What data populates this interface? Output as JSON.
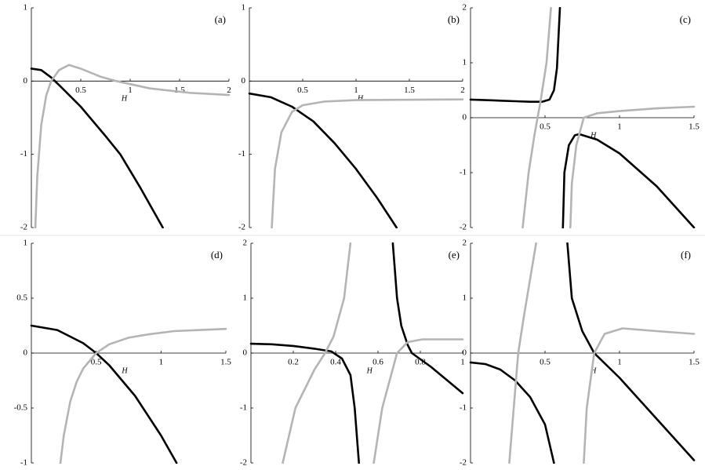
{
  "chart_data": [
    {
      "type": "line",
      "panel_label": "(a)",
      "xlabel": "H",
      "xlim": [
        0,
        2
      ],
      "ylim": [
        -2,
        1
      ],
      "xticks": [
        0.5,
        1,
        1.5,
        2
      ],
      "yticks": [
        -2,
        -1,
        0,
        1
      ],
      "series": [
        {
          "color": "#000000",
          "x": [
            0,
            0.1,
            0.2,
            0.3,
            0.5,
            0.75,
            0.9,
            1.1,
            1.33
          ],
          "values": [
            0.17,
            0.15,
            0.05,
            -0.08,
            -0.35,
            -0.75,
            -1.0,
            -1.45,
            -2
          ]
        },
        {
          "color": "#b4b4b4",
          "x": [
            0.04,
            0.06,
            0.1,
            0.15,
            0.2,
            0.28,
            0.38,
            0.5,
            0.7,
            0.86,
            1.2,
            1.6,
            2
          ],
          "values": [
            -2,
            -1.3,
            -0.6,
            -0.2,
            0,
            0.15,
            0.22,
            0.17,
            0.06,
            0,
            -0.1,
            -0.16,
            -0.19
          ]
        }
      ]
    },
    {
      "type": "line",
      "panel_label": "(b)",
      "xlabel": "H",
      "xlim": [
        0,
        2
      ],
      "ylim": [
        -2,
        1
      ],
      "xticks": [
        0.5,
        1,
        1.5,
        2
      ],
      "yticks": [
        -2,
        -1,
        0,
        1
      ],
      "series": [
        {
          "color": "#000000",
          "x": [
            0,
            0.2,
            0.4,
            0.6,
            0.8,
            1,
            1.2,
            1.38
          ],
          "values": [
            -0.17,
            -0.22,
            -0.35,
            -0.55,
            -0.85,
            -1.2,
            -1.6,
            -2
          ]
        },
        {
          "color": "#b4b4b4",
          "x": [
            0.21,
            0.24,
            0.3,
            0.4,
            0.5,
            0.7,
            1,
            2
          ],
          "values": [
            -2,
            -1.2,
            -0.7,
            -0.42,
            -0.33,
            -0.28,
            -0.26,
            -0.25
          ]
        }
      ]
    },
    {
      "type": "line",
      "panel_label": "(c)",
      "xlabel": "H",
      "xlim": [
        0,
        1.5
      ],
      "ylim": [
        -2,
        2
      ],
      "xticks": [
        0.5,
        1,
        1.5
      ],
      "yticks": [
        -2,
        -1,
        0,
        1,
        2
      ],
      "series": [
        {
          "color": "#000000",
          "x": [
            0,
            0.1,
            0.2,
            0.3,
            0.4,
            0.48,
            0.53,
            0.56,
            0.58,
            0.6,
            0.61,
            0.62,
            0.63,
            0.66,
            0.7,
            0.73,
            0.85,
            1,
            1.25,
            1.5
          ],
          "values": [
            0.33,
            0.32,
            0.31,
            0.3,
            0.29,
            0.29,
            0.33,
            0.5,
            0.9,
            2,
            null,
            -2,
            -1,
            -0.5,
            -0.32,
            -0.3,
            -0.4,
            -0.65,
            -1.25,
            -2
          ]
        },
        {
          "color": "#b4b4b4",
          "x": [
            0.35,
            0.39,
            0.43,
            0.45,
            0.47,
            0.51,
            0.54,
            0.6,
            0.67,
            0.68,
            0.71,
            0.76,
            0.85,
            1,
            1.25,
            1.5
          ],
          "values": [
            -2,
            -1,
            -0.3,
            0,
            0.3,
            1,
            2,
            null,
            -2,
            -1.2,
            -0.5,
            0,
            0.08,
            0.12,
            0.17,
            0.2
          ]
        }
      ]
    },
    {
      "type": "line",
      "panel_label": "(d)",
      "xlabel": "H",
      "xlim": [
        0,
        1.5
      ],
      "ylim": [
        -1,
        1
      ],
      "xticks": [
        0.5,
        1,
        1.5
      ],
      "yticks": [
        -1,
        -0.5,
        0,
        0.5,
        1
      ],
      "series": [
        {
          "color": "#000000",
          "x": [
            0,
            0.2,
            0.4,
            0.5,
            0.6,
            0.8,
            1,
            1.12
          ],
          "values": [
            0.25,
            0.21,
            0.09,
            0,
            -0.11,
            -0.39,
            -0.75,
            -1
          ]
        },
        {
          "color": "#b4b4b4",
          "x": [
            0.22,
            0.25,
            0.3,
            0.35,
            0.4,
            0.5,
            0.6,
            0.75,
            0.9,
            1.1,
            1.3,
            1.5
          ],
          "values": [
            -1.04,
            -0.75,
            -0.44,
            -0.26,
            -0.14,
            0,
            0.08,
            0.14,
            0.17,
            0.2,
            0.21,
            0.22
          ]
        }
      ]
    },
    {
      "type": "line",
      "panel_label": "(e)",
      "xlabel": "H",
      "xlim": [
        0,
        1
      ],
      "ylim": [
        -2,
        2
      ],
      "xticks": [
        0.2,
        0.4,
        0.6,
        0.8,
        1
      ],
      "yticks": [
        -2,
        -1,
        0,
        1,
        2
      ],
      "series": [
        {
          "color": "#000000",
          "x": [
            0,
            0.1,
            0.2,
            0.3,
            0.38,
            0.43,
            0.47,
            0.49,
            0.51,
            0.6,
            0.67,
            0.69,
            0.71,
            0.74,
            0.76,
            0.85,
            1
          ],
          "values": [
            0.17,
            0.16,
            0.13,
            0.08,
            0.03,
            -0.1,
            -0.4,
            -1,
            -2,
            null,
            2,
            1,
            0.5,
            0.15,
            0,
            -0.25,
            -0.73
          ]
        },
        {
          "color": "#b4b4b4",
          "x": [
            0.15,
            0.21,
            0.3,
            0.35,
            0.39,
            0.44,
            0.47,
            0.53,
            0.58,
            0.62,
            0.69,
            0.74,
            0.81,
            1
          ],
          "values": [
            -2,
            -1,
            -0.3,
            0,
            0.3,
            1,
            2,
            null,
            -2,
            -1,
            0,
            0.2,
            0.25,
            0.25
          ]
        }
      ]
    },
    {
      "type": "line",
      "panel_label": "(f)",
      "xlabel": "H",
      "xlim": [
        0,
        1.5
      ],
      "ylim": [
        -2,
        2
      ],
      "xticks": [
        0.5,
        1,
        1.5
      ],
      "yticks": [
        -2,
        -1,
        0,
        1,
        2
      ],
      "series": [
        {
          "color": "#000000",
          "x": [
            0,
            0.1,
            0.2,
            0.3,
            0.4,
            0.5,
            0.56,
            0.6,
            0.65,
            0.68,
            0.75,
            0.83,
            1,
            1.25,
            1.5
          ],
          "values": [
            -0.17,
            -0.2,
            -0.3,
            -0.5,
            -0.8,
            -1.3,
            -2,
            null,
            2,
            1,
            0.4,
            0,
            -0.45,
            -1.2,
            -1.95
          ]
        },
        {
          "color": "#b4b4b4",
          "x": [
            0.26,
            0.29,
            0.32,
            0.36,
            0.44,
            0.6,
            0.76,
            0.78,
            0.83,
            0.9,
            1.02,
            1.25,
            1.5
          ],
          "values": [
            -2,
            -1,
            0,
            0.7,
            2,
            null,
            -2,
            -1,
            0,
            0.35,
            0.45,
            0.4,
            0.35
          ]
        }
      ]
    }
  ]
}
